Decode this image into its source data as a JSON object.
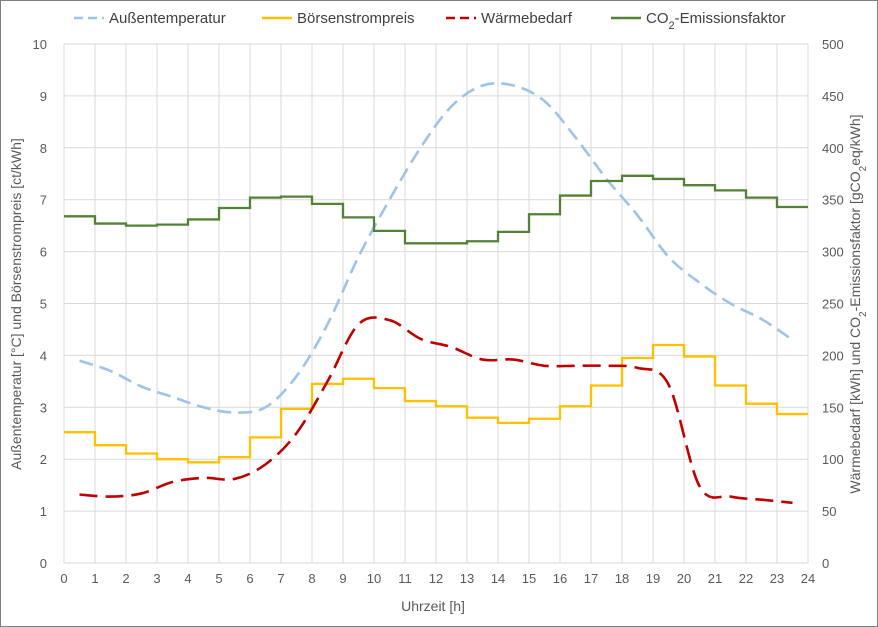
{
  "chart_data": {
    "type": "line",
    "x_axis": {
      "title": "Uhrzeit [h]",
      "min": 0,
      "max": 24,
      "step": 1
    },
    "y_left": {
      "title_parts": [
        "Außentemperatur [°C] und Börsenstrompreis [ct/kWh]"
      ],
      "min": 0,
      "max": 10,
      "step": 1
    },
    "y_right": {
      "title_prefix": "Wärmebedarf [kWh] und CO",
      "title_sub": "2",
      "title_suffix": "-Emissionsfaktor [gCO",
      "title_sub2": "2",
      "title_end": "eq/kWh]",
      "min": 0,
      "max": 500,
      "step": 50
    },
    "grid": true,
    "legend_position": "top",
    "series": [
      {
        "name": "Außentemperatur",
        "axis": "left",
        "style": "dashed",
        "color": "#9dc3e6",
        "x": [
          0.5,
          1.5,
          2.5,
          3.5,
          4.5,
          5.5,
          6.5,
          7.5,
          8.5,
          9.5,
          10.5,
          11.5,
          12.5,
          13.5,
          14.5,
          15.5,
          16.5,
          17.5,
          18.5,
          19.5,
          20.5,
          21.5,
          22.5,
          23.5
        ],
        "y": [
          3.9,
          3.7,
          3.4,
          3.2,
          3.0,
          2.9,
          3.0,
          3.6,
          4.6,
          5.9,
          7.0,
          8.0,
          8.8,
          9.2,
          9.2,
          8.9,
          8.2,
          7.4,
          6.7,
          5.9,
          5.4,
          5.0,
          4.7,
          4.3
        ]
      },
      {
        "name": "Börsenstrompreis",
        "axis": "left",
        "style": "step",
        "color": "#ffc000",
        "hours": [
          0,
          1,
          2,
          3,
          4,
          5,
          6,
          7,
          8,
          9,
          10,
          11,
          12,
          13,
          14,
          15,
          16,
          17,
          18,
          19,
          20,
          21,
          22,
          23
        ],
        "values": [
          2.52,
          2.27,
          2.11,
          2.0,
          1.94,
          2.04,
          2.42,
          2.97,
          3.45,
          3.55,
          3.37,
          3.12,
          3.02,
          2.8,
          2.7,
          2.78,
          3.02,
          3.42,
          3.95,
          4.2,
          3.98,
          3.42,
          3.07,
          2.87
        ]
      },
      {
        "name": "Wärmebedarf",
        "axis": "right",
        "style": "dashed",
        "color": "#c00000",
        "x": [
          0.5,
          1.5,
          2.5,
          3.5,
          4.5,
          5.5,
          6.5,
          7.5,
          8.5,
          9.5,
          10.5,
          11.5,
          12.5,
          13.5,
          14.5,
          15.5,
          16.5,
          17.5,
          18.5,
          19.5,
          20.5,
          21.5,
          22.5,
          23.5
        ],
        "y": [
          66,
          64,
          67,
          78,
          82,
          81,
          95,
          125,
          175,
          230,
          234,
          216,
          208,
          196,
          196,
          190,
          190,
          190,
          188,
          172,
          74,
          64,
          61,
          58
        ]
      },
      {
        "name": "CO₂-Emissionsfaktor",
        "legend_prefix": "CO",
        "legend_sub": "2",
        "legend_suffix": "-Emissionsfaktor",
        "axis": "right",
        "style": "step",
        "color": "#538135",
        "hours": [
          0,
          1,
          2,
          3,
          4,
          5,
          6,
          7,
          8,
          9,
          10,
          11,
          12,
          13,
          14,
          15,
          16,
          17,
          18,
          19,
          20,
          21,
          22,
          23
        ],
        "values": [
          334,
          327,
          325,
          326,
          331,
          342,
          352,
          353,
          346,
          333,
          320,
          308,
          308,
          310,
          319,
          336,
          354,
          368,
          373,
          370,
          364,
          359,
          352,
          343
        ]
      }
    ]
  }
}
